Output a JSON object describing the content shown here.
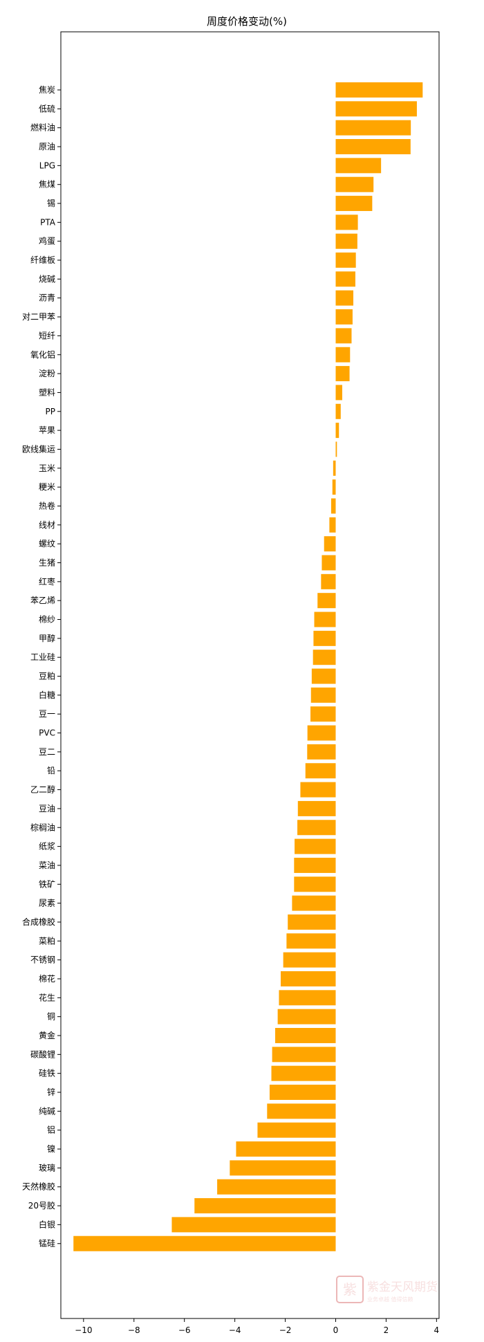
{
  "chart_data": {
    "type": "bar",
    "orientation": "horizontal",
    "title": "周度价格变动(%)",
    "xlabel": "",
    "ylabel": "",
    "xlim": [
      -10.9,
      4.1
    ],
    "xticks": [
      -10,
      -8,
      -6,
      -4,
      -2,
      0,
      2,
      4
    ],
    "xtick_labels": [
      "−10",
      "−8",
      "−6",
      "−4",
      "−2",
      "0",
      "2",
      "4"
    ],
    "grid": false,
    "bar_color": "#FFA500",
    "categories": [
      "焦炭",
      "低硫",
      "燃料油",
      "原油",
      "LPG",
      "焦煤",
      "锡",
      "PTA",
      "鸡蛋",
      "纤维板",
      "烧碱",
      "沥青",
      "对二甲苯",
      "短纤",
      "氧化铝",
      "淀粉",
      "塑料",
      "PP",
      "苹果",
      "欧线集运",
      "玉米",
      "粳米",
      "热卷",
      "线材",
      "螺纹",
      "生猪",
      "红枣",
      "苯乙烯",
      "棉纱",
      "甲醇",
      "工业硅",
      "豆粕",
      "白糖",
      "豆一",
      "PVC",
      "豆二",
      "铅",
      "乙二醇",
      "豆油",
      "棕榈油",
      "纸浆",
      "菜油",
      "铁矿",
      "尿素",
      "合成橡胶",
      "菜粕",
      "不锈钢",
      "棉花",
      "花生",
      "铜",
      "黄金",
      "碳酸锂",
      "硅铁",
      "锌",
      "纯碱",
      "铝",
      "镍",
      "玻璃",
      "天然橡胶",
      "20号胶",
      "白银",
      "锰硅"
    ],
    "values": [
      3.45,
      3.22,
      2.98,
      2.97,
      1.8,
      1.5,
      1.45,
      0.88,
      0.86,
      0.8,
      0.78,
      0.7,
      0.67,
      0.63,
      0.57,
      0.55,
      0.26,
      0.2,
      0.13,
      0.05,
      -0.1,
      -0.13,
      -0.18,
      -0.25,
      -0.46,
      -0.55,
      -0.58,
      -0.72,
      -0.85,
      -0.88,
      -0.9,
      -0.95,
      -0.98,
      -1.0,
      -1.12,
      -1.13,
      -1.2,
      -1.4,
      -1.5,
      -1.52,
      -1.63,
      -1.65,
      -1.65,
      -1.73,
      -1.9,
      -1.95,
      -2.08,
      -2.18,
      -2.25,
      -2.3,
      -2.4,
      -2.52,
      -2.55,
      -2.62,
      -2.72,
      -3.1,
      -3.95,
      -4.2,
      -4.7,
      -5.6,
      -6.5,
      -10.4
    ]
  },
  "watermark": {
    "logo_glyph": "紫",
    "brand_text": "紫金天风期货",
    "sub_text": "业务卓越 值得信赖",
    "color": "#D86A6A"
  }
}
